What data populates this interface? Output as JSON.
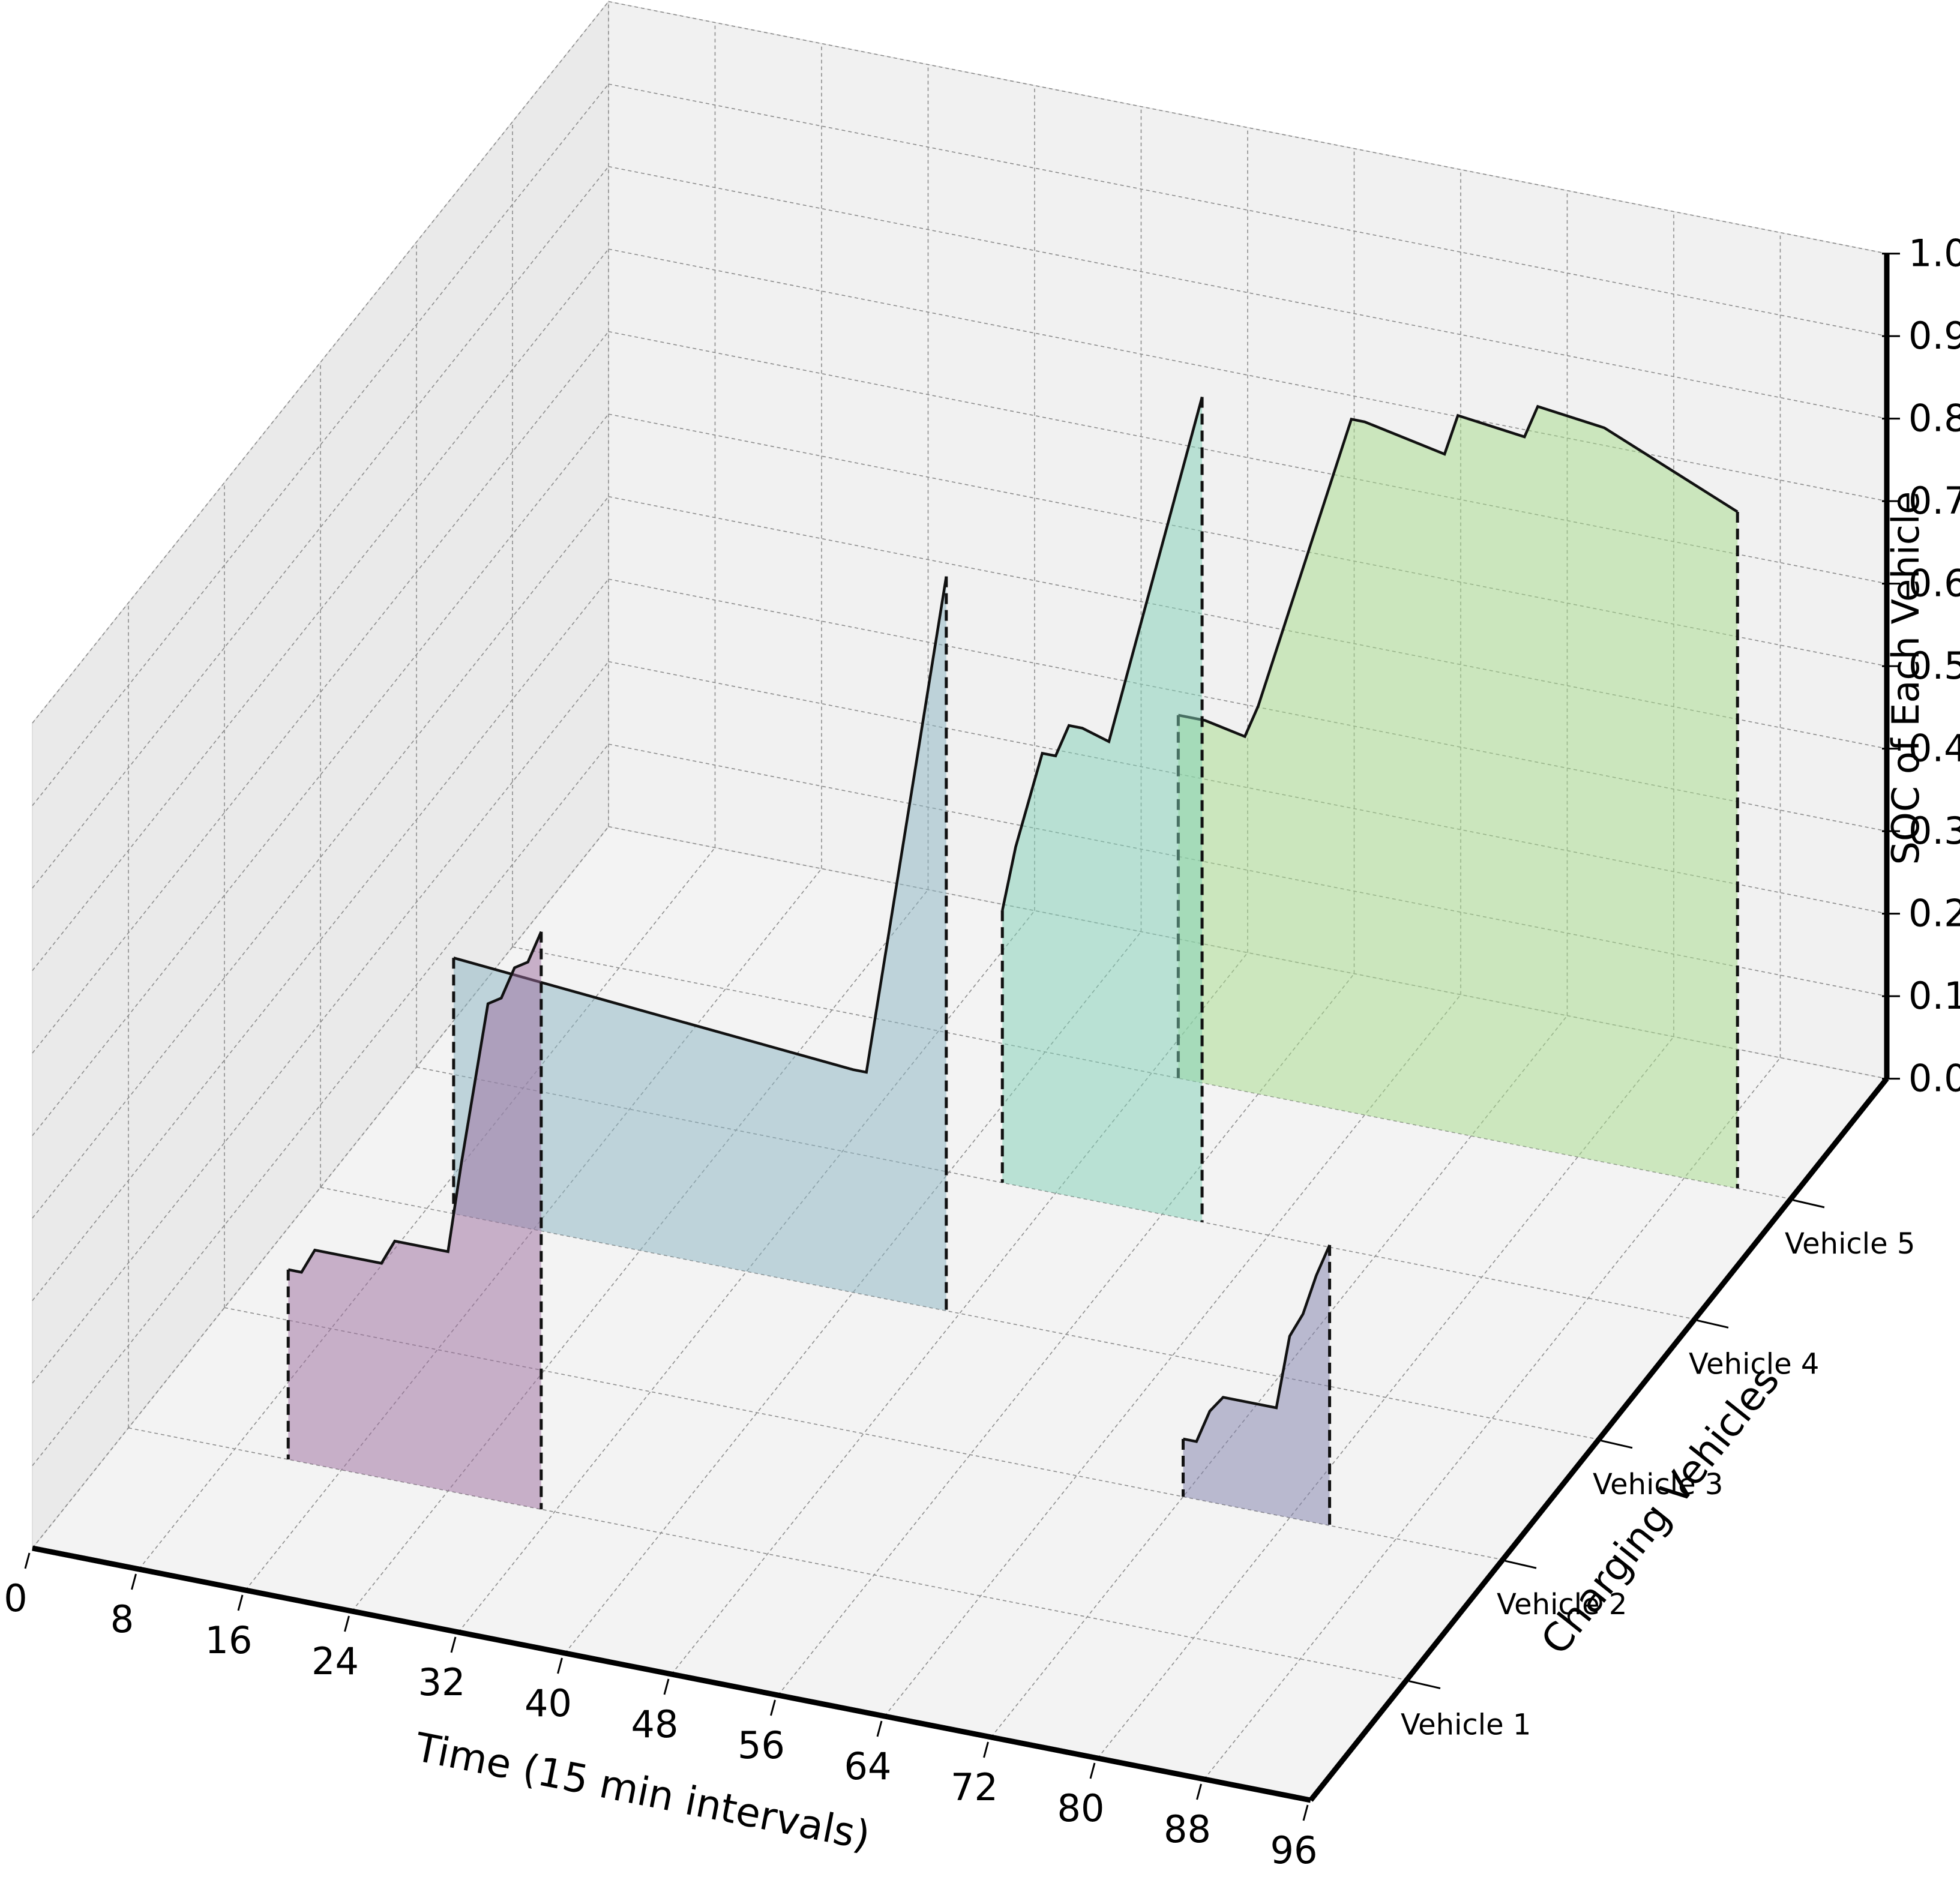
{
  "chart_data": {
    "type": "area",
    "projection": "3d",
    "title": "",
    "xlabel": "Time (15 min intervals)",
    "ylabel": "Charging Vehicles",
    "zlabel": "SOC of Each Vehicle",
    "xlim": [
      0,
      96
    ],
    "zlim": [
      0,
      1.0
    ],
    "x_ticks": [
      0,
      8,
      16,
      24,
      32,
      40,
      48,
      56,
      64,
      72,
      80,
      88,
      96
    ],
    "z_ticks": [
      "0.0",
      "0.1",
      "0.2",
      "0.3",
      "0.4",
      "0.5",
      "0.6",
      "0.7",
      "0.8",
      "0.9",
      "1.0"
    ],
    "y_ticks": [
      "Vehicle 1",
      "Vehicle 2",
      "Vehicle 3",
      "Vehicle 4",
      "Vehicle 5"
    ],
    "grid": true,
    "series": [
      {
        "name": "Vehicle 1",
        "color": "#9b6b9e",
        "x": [
          12,
          13,
          14,
          19,
          20,
          24,
          25,
          26,
          27,
          28,
          29,
          30,
          31
        ],
        "y": [
          0.23,
          0.23,
          0.26,
          0.26,
          0.29,
          0.29,
          0.4,
          0.5,
          0.6,
          0.61,
          0.65,
          0.66,
          0.7
        ]
      },
      {
        "name": "Vehicle 2",
        "color": "#7f7fac",
        "x": [
          72,
          73,
          74,
          75,
          79,
          80,
          81,
          82,
          83
        ],
        "y": [
          0.07,
          0.07,
          0.11,
          0.13,
          0.13,
          0.22,
          0.25,
          0.3,
          0.34
        ]
      },
      {
        "name": "Vehicle 3",
        "color": "#8ab3c2",
        "x": [
          10,
          40,
          41,
          47
        ],
        "y": [
          0.31,
          0.27,
          0.27,
          0.89
        ]
      },
      {
        "name": "Vehicle 4",
        "color": "#7fd0b5",
        "x": [
          44,
          45,
          47,
          48,
          49,
          50,
          52,
          59
        ],
        "y": [
          0.33,
          0.41,
          0.53,
          0.53,
          0.57,
          0.57,
          0.56,
          1.0
        ]
      },
      {
        "name": "Vehicle 5",
        "color": "#a6db8a",
        "x": [
          50,
          52,
          55,
          56,
          63,
          64,
          70,
          71,
          76,
          77,
          82,
          92
        ],
        "y": [
          0.44,
          0.44,
          0.43,
          0.47,
          0.84,
          0.84,
          0.82,
          0.87,
          0.86,
          0.9,
          0.89,
          0.82
        ]
      }
    ]
  }
}
